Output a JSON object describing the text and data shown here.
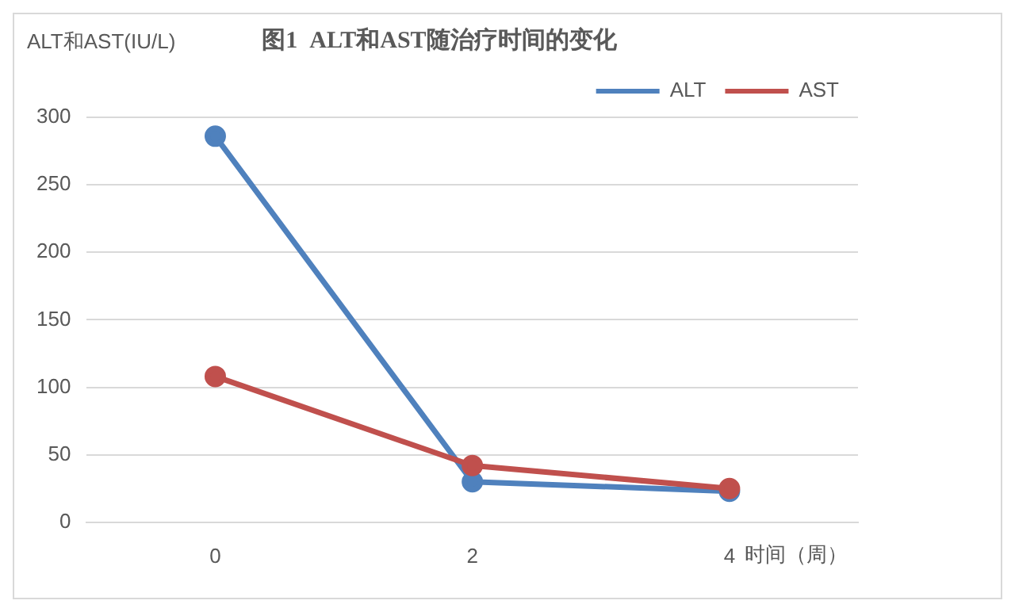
{
  "chart_data": {
    "type": "line",
    "title": "图1  ALT和AST随治疗时间的变化",
    "ylabel": "ALT和AST(IU/L)",
    "xlabel": "时间（周）",
    "categories": [
      "0",
      "2",
      "4"
    ],
    "series": [
      {
        "name": "ALT",
        "color": "#4f81bd",
        "values": [
          286,
          30,
          23
        ]
      },
      {
        "name": "AST",
        "color": "#c0504d",
        "values": [
          108,
          42,
          25
        ]
      }
    ],
    "ylim": [
      0,
      300
    ],
    "yticks": [
      0,
      50,
      100,
      150,
      200,
      250,
      300
    ],
    "grid": "y",
    "legend": "top right",
    "marker": "circle",
    "line_style": "solid"
  }
}
